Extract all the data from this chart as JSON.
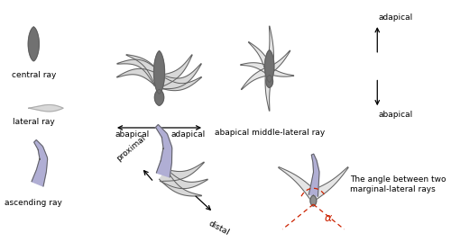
{
  "bg_color": "#ffffff",
  "text_color": "#000000",
  "gray": "#717171",
  "lgray": "#d8d8d8",
  "lgray_outline": "#aaaaaa",
  "purple": "#b0aed4",
  "purple_outline": "#8080a0",
  "outline": "#606060",
  "red": "#cc2200",
  "labels": {
    "central_ray": "central ray",
    "lateral_ray": "lateral ray",
    "ascending_ray": "ascending ray",
    "abapical": "abapical",
    "adapical": "adapical",
    "abapical_mlr": "abapical middle-lateral ray",
    "proximal": "proximal",
    "distal": "distal",
    "angle_text": "The angle between two\nmarginal-lateral rays",
    "alpha": "α"
  },
  "fontsize": 6.5,
  "figsize": [
    5.0,
    2.79
  ],
  "dpi": 100
}
